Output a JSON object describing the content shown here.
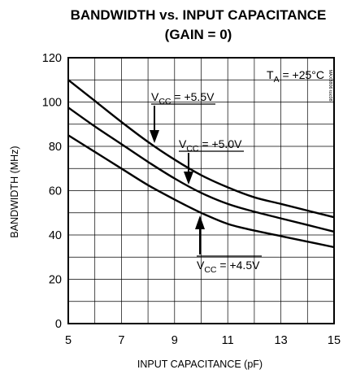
{
  "chart_data": {
    "type": "line",
    "title_line1": "BANDWIDTH vs. INPUT CAPACITANCE",
    "title_line2": "(GAIN = 0)",
    "xlabel": "INPUT CAPACITANCE (pF)",
    "ylabel": "BANDWIDTH (MHz)",
    "xlim": [
      5,
      15
    ],
    "ylim": [
      0,
      120
    ],
    "xticks": [
      5,
      7,
      9,
      11,
      13,
      15
    ],
    "yticks": [
      0,
      20,
      40,
      60,
      80,
      100,
      120
    ],
    "grid": true,
    "chart_code": "MAX3806 toc08",
    "condition": {
      "main": "T",
      "sub": "A",
      "rest": " = +25°C"
    },
    "series": [
      {
        "label": {
          "main": "V",
          "sub": "CC",
          "rest": " = +5.5V"
        },
        "x": [
          5,
          6,
          7,
          8,
          9,
          10,
          11,
          12,
          13,
          14,
          15
        ],
        "y": [
          110,
          100.5,
          91,
          82,
          74,
          67,
          61.5,
          57,
          54,
          51,
          48
        ]
      },
      {
        "label": {
          "main": "V",
          "sub": "CC",
          "rest": " = +5.0V"
        },
        "x": [
          5,
          6,
          7,
          8,
          9,
          10,
          11,
          12,
          13,
          14,
          15
        ],
        "y": [
          97.5,
          89,
          81,
          73,
          65.5,
          59,
          54,
          50.5,
          47.5,
          44.5,
          41.5
        ]
      },
      {
        "label": {
          "main": "V",
          "sub": "CC",
          "rest": " = +4.5V"
        },
        "x": [
          5,
          6,
          7,
          8,
          9,
          10,
          11,
          12,
          13,
          14,
          15
        ],
        "y": [
          85,
          77.5,
          70,
          62.5,
          56,
          50,
          45,
          42,
          39.5,
          37,
          34.5
        ]
      }
    ]
  }
}
